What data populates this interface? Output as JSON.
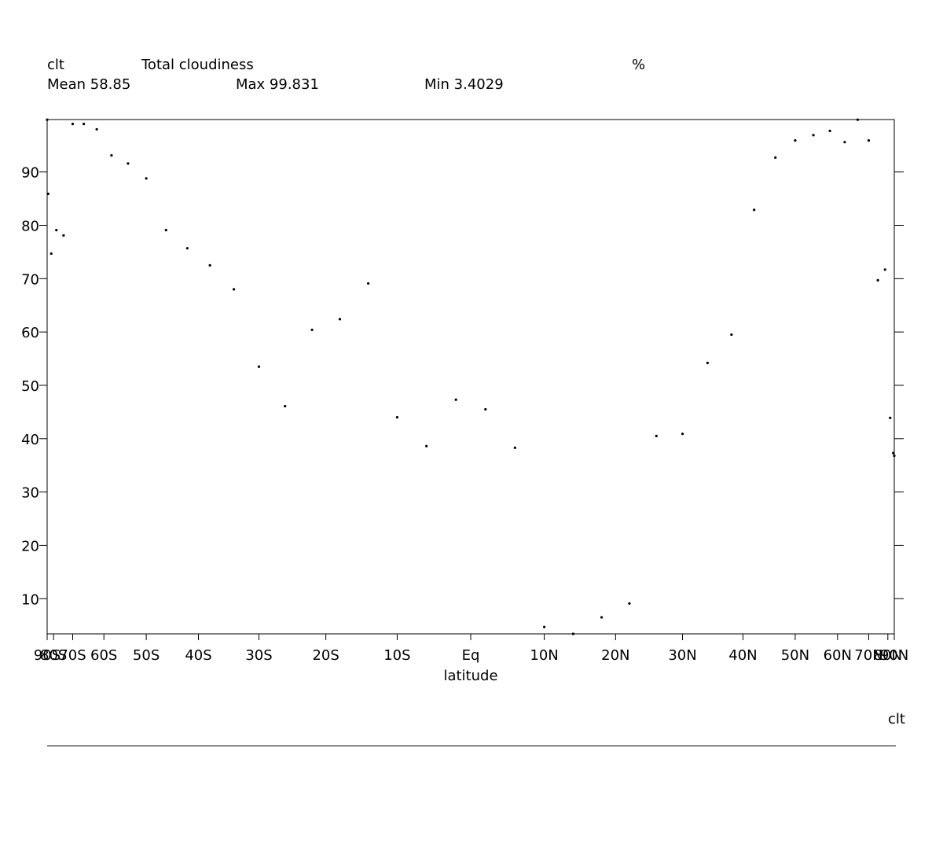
{
  "chart_data": {
    "type": "line",
    "variable": "clt",
    "title": "Total cloudiness",
    "units": "%",
    "stats": [
      "Mean 58.85",
      "Max 99.831",
      "Min 3.4029"
    ],
    "x_label": "latitude",
    "footer": "clt",
    "xscale": "sine",
    "xlim": [
      -90,
      90
    ],
    "ylim": [
      3.4029,
      99.831
    ],
    "xticks": [
      {
        "value": -90,
        "label": "90S"
      },
      {
        "value": -80,
        "label": "80S"
      },
      {
        "value": -70,
        "label": "70S"
      },
      {
        "value": -60,
        "label": "60S"
      },
      {
        "value": -50,
        "label": "50S"
      },
      {
        "value": -40,
        "label": "40S"
      },
      {
        "value": -30,
        "label": "30S"
      },
      {
        "value": -20,
        "label": "20S"
      },
      {
        "value": -10,
        "label": "10S"
      },
      {
        "value": 0,
        "label": "Eq"
      },
      {
        "value": 10,
        "label": "10N"
      },
      {
        "value": 20,
        "label": "20N"
      },
      {
        "value": 30,
        "label": "30N"
      },
      {
        "value": 40,
        "label": "40N"
      },
      {
        "value": 50,
        "label": "50N"
      },
      {
        "value": 60,
        "label": "60N"
      },
      {
        "value": 70,
        "label": "70N"
      },
      {
        "value": 80,
        "label": "80N"
      },
      {
        "value": 90,
        "label": "90N"
      }
    ],
    "yticks": [
      10,
      20,
      30,
      40,
      50,
      60,
      70,
      80,
      90
    ],
    "color": "#000000",
    "x": [
      -90,
      -86,
      -82,
      -78,
      -74,
      -70,
      -66,
      -62,
      -58,
      -54,
      -50,
      -46,
      -42,
      -38,
      -34,
      -30,
      -26,
      -22,
      -18,
      -14,
      -10,
      -6,
      -2,
      2,
      6,
      10,
      14,
      18,
      22,
      26,
      30,
      34,
      38,
      42,
      46,
      50,
      54,
      58,
      62,
      66,
      70,
      74,
      78,
      82,
      86,
      90
    ],
    "values": [
      99.8,
      85.9,
      74.7,
      79.1,
      78.1,
      99.0,
      99.0,
      98.0,
      93.1,
      91.6,
      88.8,
      79.1,
      75.7,
      72.5,
      68.0,
      53.5,
      46.1,
      60.4,
      62.4,
      69.1,
      44.0,
      38.6,
      47.3,
      45.5,
      38.3,
      4.7,
      3.4,
      6.5,
      9.1,
      40.5,
      40.9,
      54.2,
      59.5,
      82.9,
      92.7,
      95.9,
      96.9,
      97.7,
      95.6,
      99.8,
      95.9,
      69.7,
      71.7,
      43.9,
      37.3,
      36.8
    ]
  }
}
